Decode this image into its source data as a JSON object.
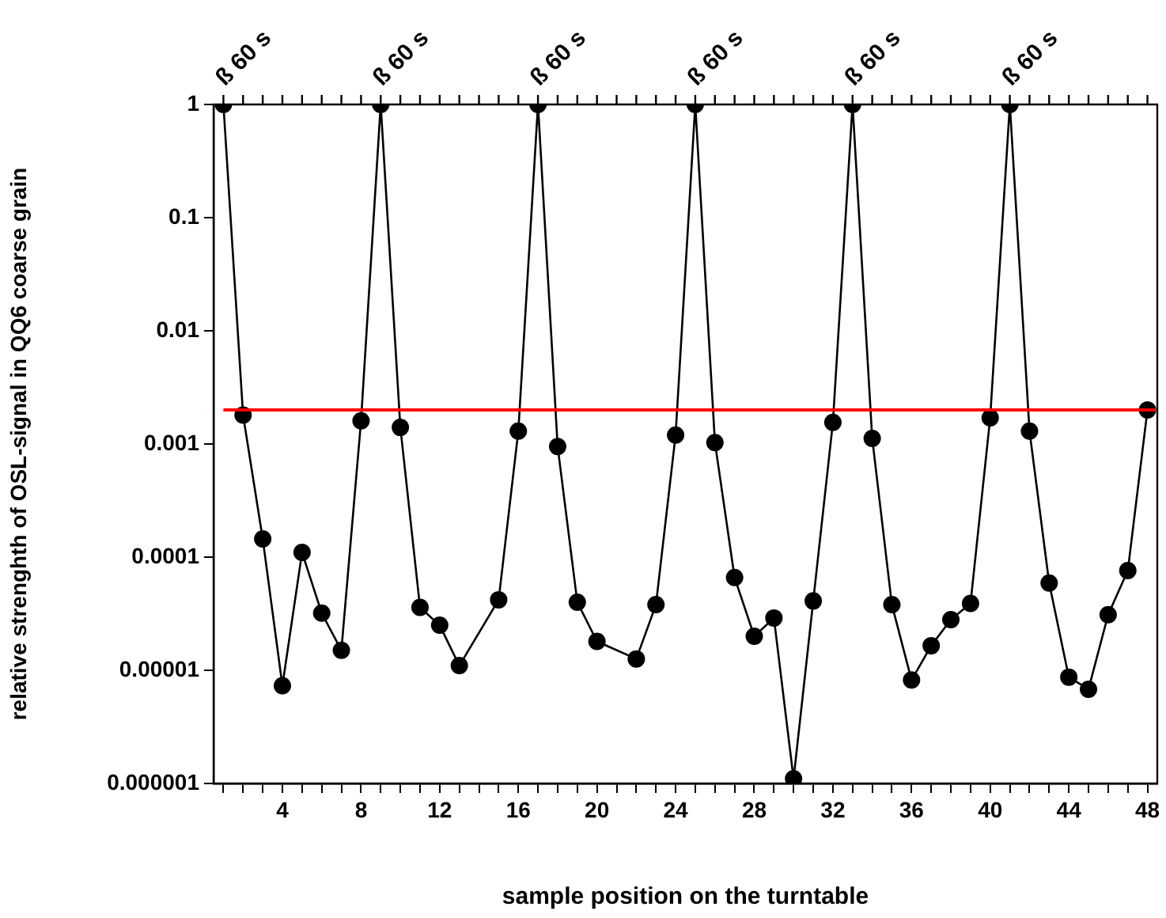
{
  "chart_data": {
    "type": "line",
    "xlabel": "sample position on the turntable",
    "ylabel": "relative strenghth of OSL-signal in QQ6 coarse grain",
    "x": [
      1,
      2,
      3,
      4,
      5,
      6,
      7,
      8,
      9,
      10,
      11,
      12,
      13,
      14,
      15,
      16,
      17,
      18,
      19,
      20,
      21,
      22,
      23,
      24,
      25,
      26,
      27,
      28,
      29,
      30,
      31,
      32,
      33,
      34,
      35,
      36,
      37,
      38,
      39,
      40,
      41,
      42,
      43,
      44,
      45,
      46,
      47,
      48
    ],
    "series": [
      {
        "color": "#000000",
        "values": [
          1,
          0.0018,
          0.000145,
          7.3e-06,
          0.00011,
          3.2e-05,
          1.5e-05,
          0.0016,
          1,
          0.0014,
          3.6e-05,
          2.5e-05,
          1.1e-05,
          null,
          4.2e-05,
          0.0013,
          1,
          0.00095,
          4e-05,
          1.8e-05,
          null,
          1.26e-05,
          3.8e-05,
          0.0012,
          1,
          0.00103,
          6.6e-05,
          2e-05,
          2.9e-05,
          1.1e-06,
          4.1e-05,
          0.00155,
          1,
          0.00112,
          3.8e-05,
          8.2e-06,
          1.65e-05,
          2.8e-05,
          3.9e-05,
          0.0017,
          1,
          0.0013,
          5.9e-05,
          8.7e-06,
          6.8e-06,
          3.1e-05,
          7.6e-05,
          0.002
        ]
      }
    ],
    "xlim": [
      0.5,
      48.5
    ],
    "xticks": [
      {
        "value": 1,
        "label": null
      },
      {
        "value": 2,
        "label": null
      },
      {
        "value": 3,
        "label": null
      },
      4,
      {
        "value": 5,
        "label": null
      },
      {
        "value": 6,
        "label": null
      },
      {
        "value": 7,
        "label": null
      },
      8,
      {
        "value": 9,
        "label": null
      },
      {
        "value": 10,
        "label": null
      },
      {
        "value": 11,
        "label": null
      },
      12,
      {
        "value": 13,
        "label": null
      },
      {
        "value": 14,
        "label": null
      },
      {
        "value": 15,
        "label": null
      },
      16,
      {
        "value": 17,
        "label": null
      },
      {
        "value": 18,
        "label": null
      },
      {
        "value": 19,
        "label": null
      },
      20,
      {
        "value": 21,
        "label": null
      },
      {
        "value": 22,
        "label": null
      },
      {
        "value": 23,
        "label": null
      },
      24,
      {
        "value": 25,
        "label": null
      },
      {
        "value": 26,
        "label": null
      },
      {
        "value": 27,
        "label": null
      },
      28,
      {
        "value": 29,
        "label": null
      },
      {
        "value": 30,
        "label": null
      },
      {
        "value": 31,
        "label": null
      },
      32,
      {
        "value": 33,
        "label": null
      },
      {
        "value": 34,
        "label": null
      },
      {
        "value": 35,
        "label": null
      },
      36,
      {
        "value": 37,
        "label": null
      },
      {
        "value": 38,
        "label": null
      },
      {
        "value": 39,
        "label": null
      },
      40,
      {
        "value": 41,
        "label": null
      },
      {
        "value": 42,
        "label": null
      },
      {
        "value": 43,
        "label": null
      },
      44,
      {
        "value": 45,
        "label": null
      },
      {
        "value": 46,
        "label": null
      },
      {
        "value": 47,
        "label": null
      },
      48
    ],
    "ylim": [
      1e-06,
      1
    ],
    "yticks": [
      {
        "value": 1e-06,
        "label": "0.000001"
      },
      {
        "value": 1e-05,
        "label": "0.00001"
      },
      0.0001,
      0.001,
      0.01,
      0.1,
      1
    ],
    "log": "y",
    "grid": false,
    "legend": false,
    "marker": "circle",
    "line_style": "solid",
    "ref_lines": [
      {
        "axis": "y",
        "value": 0.002,
        "color": "#ff0000"
      }
    ],
    "annotations": [
      {
        "text": "ß 60 s",
        "x": 1,
        "y": 1
      },
      {
        "text": "ß 60 s",
        "x": 9,
        "y": 1
      },
      {
        "text": "ß 60 s",
        "x": 17,
        "y": 1
      },
      {
        "text": "ß 60 s",
        "x": 25,
        "y": 1
      },
      {
        "text": "ß 60 s",
        "x": 33,
        "y": 1
      },
      {
        "text": "ß 60 s",
        "x": 41,
        "y": 1
      }
    ]
  }
}
